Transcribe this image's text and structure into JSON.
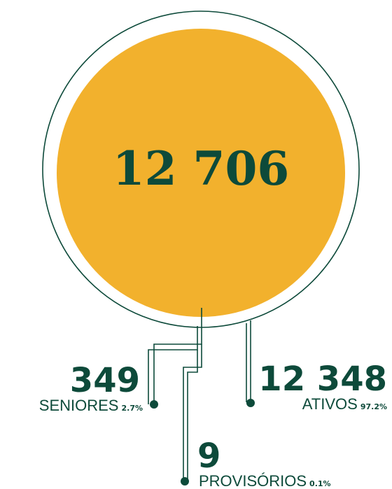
{
  "total": "12 706",
  "groups": [
    {
      "value": "349",
      "name": "SENIORES",
      "percent": "2.7%"
    },
    {
      "value": "12 348",
      "name": "ATIVOS",
      "percent": "97.2%"
    },
    {
      "value": "9",
      "name": "PROVISÓRIOS",
      "percent": "0.1%"
    }
  ]
}
